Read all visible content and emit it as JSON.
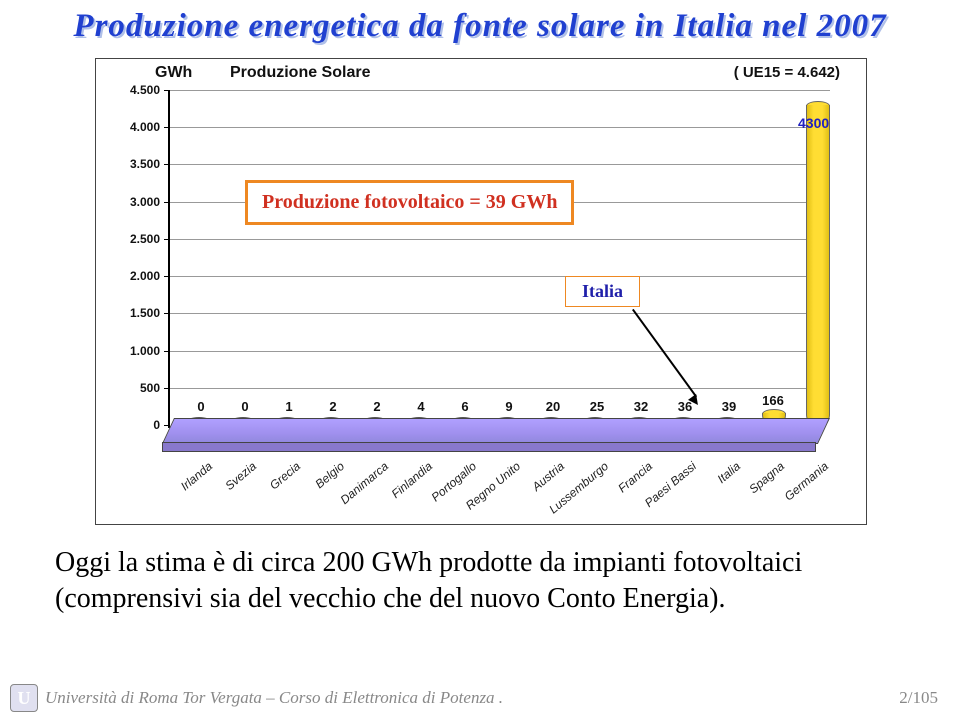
{
  "title_text": "Produzione energetica da fonte solare in Italia nel 2007",
  "chart": {
    "type": "bar",
    "y_label": "GWh",
    "chart_title": "Produzione Solare",
    "ue_text": "( UE15 = 4.642)",
    "ylim": [
      0,
      4500
    ],
    "ytick_labels": [
      "0",
      "500",
      "1.000",
      "1.500",
      "2.000",
      "2.500",
      "3.000",
      "3.500",
      "4.000",
      "4.500"
    ],
    "ytick_values": [
      0,
      500,
      1000,
      1500,
      2000,
      2500,
      3000,
      3500,
      4000,
      4500
    ],
    "categories": [
      "Irlanda",
      "Svezia",
      "Grecia",
      "Belgio",
      "Danimarca",
      "Finlandia",
      "Portogallo",
      "Regno Unito",
      "Austria",
      "Lussemburgo",
      "Francia",
      "Paesi Bassi",
      "Italia",
      "Spagna",
      "Germania"
    ],
    "values": [
      0,
      0,
      1,
      2,
      2,
      4,
      6,
      9,
      20,
      25,
      32,
      36,
      39,
      166,
      4300
    ],
    "bar_colors": [
      "#ffdd33",
      "#ffdd33",
      "#ffdd33",
      "#ffdd33",
      "#ffdd33",
      "#ffdd33",
      "#ffdd33",
      "#ffdd33",
      "#ffdd33",
      "#ffdd33",
      "#ffdd33",
      "#228844",
      "#ffdd33",
      "#ffdd33",
      "#ffdd33"
    ],
    "bar_border": "#777",
    "highlight_value_color": "#2020c0",
    "highlight_value": "4300",
    "grid_color": "#999999",
    "axis_color": "#000000",
    "platform_color": "#a090ee",
    "background_color": "#ffffff"
  },
  "callout_prod": "Produzione fotovoltaico = 39 GWh",
  "callout_italia": "Italia",
  "body_text": "Oggi la stima è di circa 200 GWh prodotte da impianti fotovoltaici (comprensivi sia del vecchio che del nuovo Conto Energia).",
  "footer_text": "Università di Roma Tor Vergata – Corso di Elettronica di Potenza .",
  "footer_page": "2/105"
}
